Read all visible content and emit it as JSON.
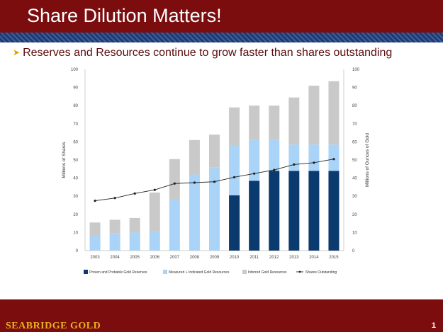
{
  "slide": {
    "title": "Share Dilution Matters!",
    "bullet": "Reserves and Resources continue to grow faster than shares outstanding",
    "footer_brand": "SEABRIDGE GOLD",
    "page_number": "1"
  },
  "colors": {
    "proven": "#0b3a6e",
    "measured": "#a9d3f7",
    "inferred": "#c9c9c9",
    "line": "#222222",
    "header": "#7b0d0e",
    "stripe": "#1b3a78"
  },
  "chart_data": {
    "type": "bar",
    "stacked": true,
    "categories": [
      "2003",
      "2004",
      "2005",
      "2006",
      "2007",
      "2008",
      "2009",
      "2010",
      "2011",
      "2012",
      "2013",
      "2014",
      "2015"
    ],
    "series": [
      {
        "name": "Proven and Probable Gold Reserves",
        "axis": "right",
        "kind": "bar",
        "values": [
          0,
          0,
          0,
          0,
          0,
          0,
          0,
          30.5,
          38.5,
          44,
          44,
          44,
          44
        ]
      },
      {
        "name": "Measured + Indicated Gold Resources",
        "axis": "right",
        "kind": "bar",
        "values": [
          8,
          9.5,
          10,
          10.5,
          28,
          42,
          46,
          27.5,
          22.5,
          17,
          14.5,
          14.5,
          14.5
        ]
      },
      {
        "name": "Inferred Gold Resources",
        "axis": "right",
        "kind": "bar",
        "values": [
          7.5,
          7.5,
          8,
          21.5,
          22.5,
          19,
          18,
          21,
          19,
          19,
          26,
          32.5,
          35
        ]
      },
      {
        "name": "Shares Outstanding",
        "axis": "left",
        "kind": "line",
        "values": [
          27.5,
          29,
          31.5,
          33.5,
          37,
          37.5,
          38,
          40.5,
          42.5,
          44.5,
          47.5,
          48.5,
          50.5
        ]
      }
    ],
    "ylabel": "Millions of Shares",
    "y2label": "Millions of Ounces of Gold",
    "ylim": [
      0,
      100
    ],
    "y2lim": [
      0,
      100
    ],
    "yticks": [
      0,
      10,
      20,
      30,
      40,
      50,
      60,
      70,
      80,
      90,
      100
    ],
    "grid": false,
    "legend": "bottom"
  }
}
